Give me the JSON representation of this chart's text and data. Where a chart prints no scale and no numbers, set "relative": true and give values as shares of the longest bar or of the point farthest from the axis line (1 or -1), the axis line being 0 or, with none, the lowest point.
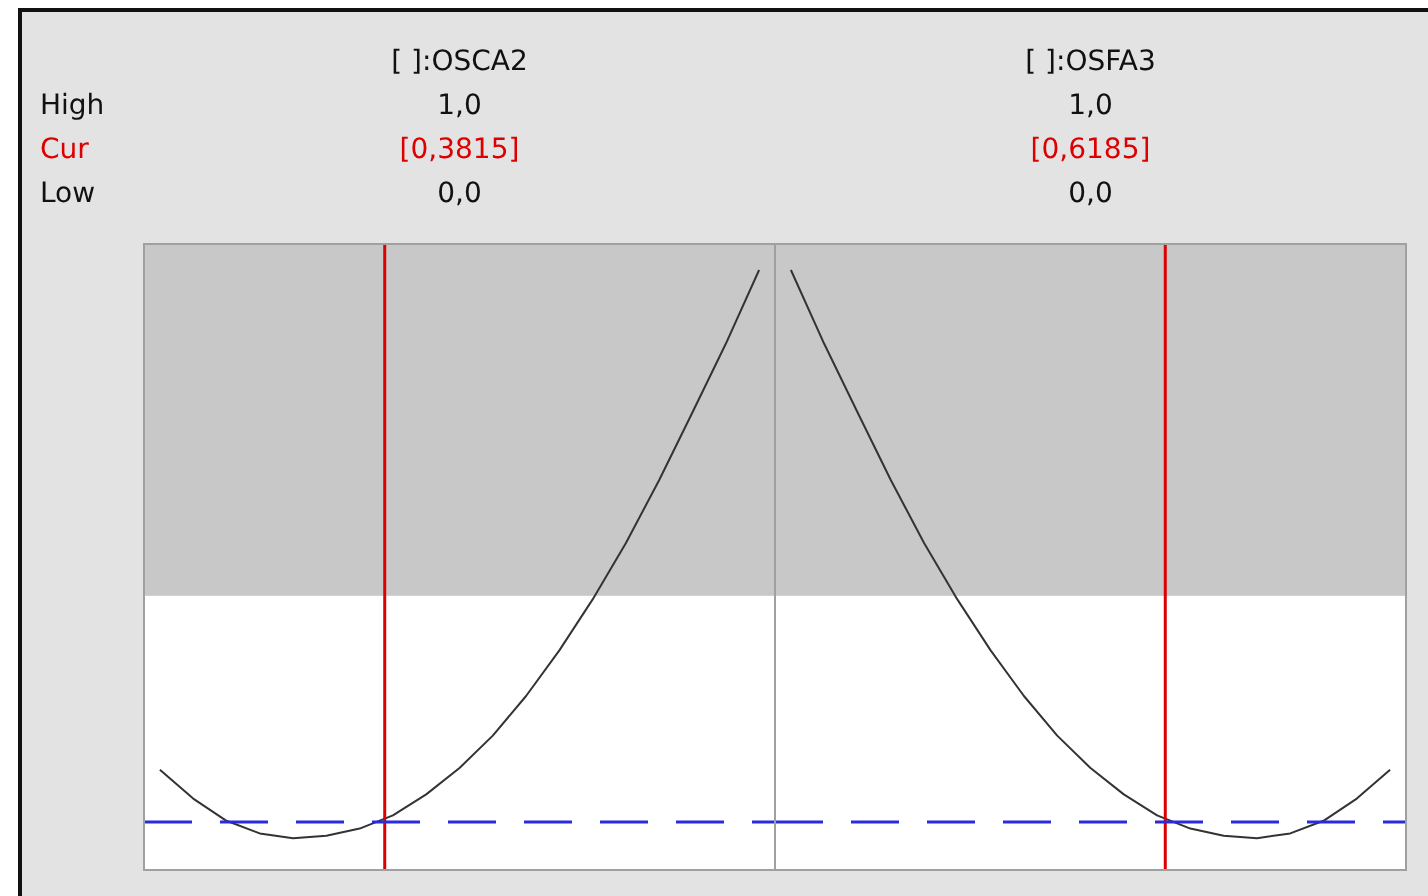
{
  "chart_data": [
    {
      "type": "line",
      "title": "[ ]:OSCA2",
      "relative": true,
      "tick_labels": false,
      "categories": [
        null,
        null,
        null,
        null,
        null,
        null,
        null,
        null,
        null,
        null,
        null,
        null,
        null,
        null,
        null,
        null,
        null,
        null,
        null
      ],
      "series": [
        {
          "color": "#333333",
          "values": [
            0.167,
            0.119,
            0.082,
            0.061,
            0.053,
            0.057,
            0.069,
            0.091,
            0.126,
            0.17,
            0.224,
            0.29,
            0.366,
            0.451,
            0.545,
            0.65,
            0.763,
            0.877,
            1.0
          ]
        }
      ],
      "ref_lines": [
        {
          "axis": "y",
          "value": 0.08,
          "color": "#2a2ae0",
          "line_style": "dashed"
        }
      ],
      "bands": [
        {
          "axis": "y",
          "from": 0.457,
          "to": 1.043,
          "color": "#c8c8c8"
        }
      ],
      "annotations": [
        "High",
        "Cur",
        "Low",
        "1,0",
        "[0,3815]",
        "0,0"
      ]
    },
    {
      "type": "line",
      "title": "[ ]:OSFA3",
      "relative": true,
      "tick_labels": false,
      "categories": [
        null,
        null,
        null,
        null,
        null,
        null,
        null,
        null,
        null,
        null,
        null,
        null,
        null,
        null,
        null,
        null,
        null,
        null,
        null
      ],
      "series": [
        {
          "color": "#333333",
          "values": [
            1.0,
            0.877,
            0.763,
            0.65,
            0.545,
            0.451,
            0.366,
            0.29,
            0.224,
            0.17,
            0.126,
            0.091,
            0.069,
            0.057,
            0.053,
            0.061,
            0.082,
            0.119,
            0.167
          ]
        }
      ],
      "ref_lines": [
        {
          "axis": "y",
          "value": 0.08,
          "color": "#2a2ae0",
          "line_style": "dashed"
        }
      ],
      "bands": [
        {
          "axis": "y",
          "from": 0.457,
          "to": 1.043,
          "color": "#c8c8c8"
        }
      ],
      "annotations": [
        "1,0",
        "[0,6185]",
        "0,0"
      ]
    }
  ]
}
